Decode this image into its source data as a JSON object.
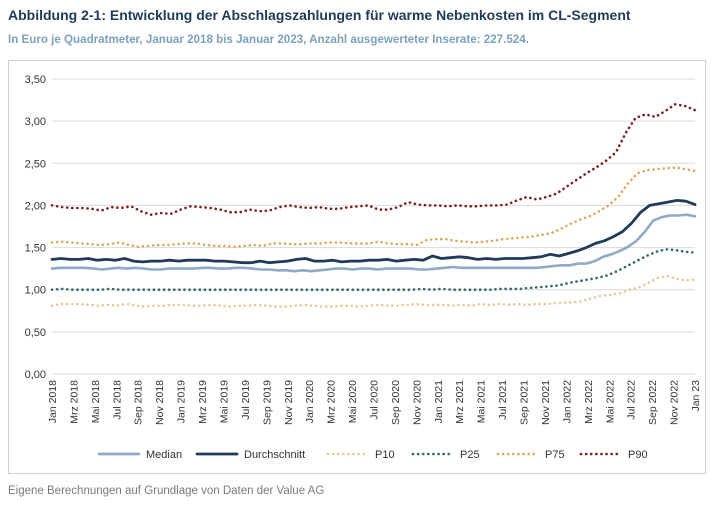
{
  "title": "Abbildung 2-1: Entwicklung der Abschlagszahlungen für warme Nebenkosten im CL-Segment",
  "subtitle": "In Euro je Quadratmeter, Januar 2018 bis Januar 2023, Anzahl ausgewerteter Inserate: 227.524.",
  "footer": "Eigene Berechnungen auf Grundlage von Daten der Value AG",
  "colors": {
    "median": "#8faac7",
    "durchschnitt": "#1f3b57",
    "p10": "#e8c99a",
    "p25": "#2e6b6b",
    "p75": "#dca95f",
    "p90": "#7b1e1e",
    "grid": "#d9d9d9"
  },
  "chart_data": {
    "type": "line",
    "ylim": [
      0,
      3.5
    ],
    "yticks": [
      "0,00",
      "0,50",
      "1,00",
      "1,50",
      "2,00",
      "2,50",
      "3,00",
      "3,50"
    ],
    "ytick_values": [
      0,
      0.5,
      1.0,
      1.5,
      2.0,
      2.5,
      3.0,
      3.5
    ],
    "grid": true,
    "legend_position": "bottom",
    "x_tick_labels": [
      "Jan 2018",
      "Mrz 2018",
      "Mai 2018",
      "Jul 2018",
      "Sep 2018",
      "Nov 2018",
      "Jan 2019",
      "Mrz 2019",
      "Mai 2019",
      "Jul 2019",
      "Sep 2019",
      "Nov 2019",
      "Jan 2020",
      "Mrz 2020",
      "Mai 2020",
      "Jul 2020",
      "Sep 2020",
      "Nov 2020",
      "Jan 2021",
      "Mrz 2021",
      "Mai 2021",
      "Jul 2021",
      "Sep 2021",
      "Nov 2021",
      "Jan 2022",
      "Mrz 2022",
      "Mai 2022",
      "Jul 2022",
      "Sep 2022",
      "Nov 2022",
      "Jan 23"
    ],
    "series": [
      {
        "name": "Median",
        "style": "solid",
        "color": "#8faac7",
        "values": [
          1.25,
          1.26,
          1.26,
          1.26,
          1.26,
          1.25,
          1.24,
          1.25,
          1.26,
          1.25,
          1.26,
          1.25,
          1.24,
          1.24,
          1.25,
          1.25,
          1.25,
          1.25,
          1.26,
          1.26,
          1.25,
          1.25,
          1.26,
          1.26,
          1.25,
          1.24,
          1.24,
          1.23,
          1.23,
          1.22,
          1.23,
          1.22,
          1.23,
          1.24,
          1.25,
          1.25,
          1.24,
          1.25,
          1.25,
          1.24,
          1.25,
          1.25,
          1.25,
          1.25,
          1.24,
          1.24,
          1.25,
          1.26,
          1.27,
          1.26,
          1.26,
          1.26,
          1.26,
          1.26,
          1.26,
          1.26,
          1.26,
          1.26,
          1.26,
          1.27,
          1.28,
          1.29,
          1.29,
          1.31,
          1.31,
          1.34,
          1.39,
          1.42,
          1.46,
          1.51,
          1.58,
          1.69,
          1.82,
          1.86,
          1.88,
          1.88,
          1.89,
          1.87
        ]
      },
      {
        "name": "Durchschnitt",
        "style": "solid",
        "color": "#1f3b57",
        "values": [
          1.36,
          1.37,
          1.36,
          1.36,
          1.37,
          1.35,
          1.36,
          1.35,
          1.37,
          1.34,
          1.33,
          1.34,
          1.34,
          1.35,
          1.34,
          1.35,
          1.35,
          1.35,
          1.34,
          1.34,
          1.33,
          1.32,
          1.32,
          1.34,
          1.32,
          1.33,
          1.34,
          1.36,
          1.37,
          1.34,
          1.34,
          1.35,
          1.33,
          1.34,
          1.34,
          1.35,
          1.35,
          1.36,
          1.34,
          1.35,
          1.36,
          1.35,
          1.4,
          1.37,
          1.38,
          1.39,
          1.38,
          1.36,
          1.37,
          1.36,
          1.37,
          1.37,
          1.37,
          1.38,
          1.39,
          1.42,
          1.4,
          1.43,
          1.46,
          1.5,
          1.55,
          1.58,
          1.63,
          1.69,
          1.79,
          1.92,
          2.0,
          2.02,
          2.04,
          2.06,
          2.05,
          2.01
        ]
      },
      {
        "name": "P10",
        "style": "dotted",
        "color": "#e8c99a",
        "values": [
          0.81,
          0.83,
          0.83,
          0.83,
          0.82,
          0.81,
          0.82,
          0.81,
          0.83,
          0.81,
          0.8,
          0.81,
          0.81,
          0.82,
          0.82,
          0.81,
          0.81,
          0.82,
          0.81,
          0.8,
          0.81,
          0.81,
          0.82,
          0.81,
          0.8,
          0.8,
          0.81,
          0.82,
          0.81,
          0.8,
          0.8,
          0.81,
          0.81,
          0.8,
          0.81,
          0.82,
          0.81,
          0.81,
          0.82,
          0.83,
          0.82,
          0.82,
          0.82,
          0.81,
          0.82,
          0.81,
          0.83,
          0.82,
          0.83,
          0.82,
          0.83,
          0.82,
          0.83,
          0.83,
          0.84,
          0.85,
          0.85,
          0.87,
          0.9,
          0.93,
          0.94,
          0.96,
          1.0,
          1.03,
          1.08,
          1.14,
          1.16,
          1.13,
          1.11,
          1.12
        ]
      },
      {
        "name": "P25",
        "style": "dotted",
        "color": "#2e6b6b",
        "values": [
          1.0,
          1.01,
          1.0,
          1.0,
          1.0,
          1.0,
          1.01,
          1.0,
          1.0,
          1.0,
          1.0,
          1.0,
          1.0,
          1.0,
          1.0,
          1.0,
          1.0,
          1.0,
          1.0,
          1.0,
          1.0,
          1.0,
          1.0,
          1.0,
          1.0,
          1.0,
          1.0,
          1.0,
          1.0,
          1.0,
          1.0,
          1.0,
          1.0,
          1.0,
          1.0,
          1.0,
          1.0,
          1.0,
          1.01,
          1.0,
          1.01,
          1.0,
          1.0,
          1.0,
          1.0,
          1.0,
          1.01,
          1.01,
          1.01,
          1.02,
          1.03,
          1.04,
          1.05,
          1.08,
          1.1,
          1.12,
          1.14,
          1.17,
          1.22,
          1.28,
          1.34,
          1.4,
          1.45,
          1.48,
          1.47,
          1.45,
          1.44
        ]
      },
      {
        "name": "P75",
        "style": "dotted",
        "color": "#dca95f",
        "values": [
          1.56,
          1.57,
          1.56,
          1.55,
          1.54,
          1.53,
          1.54,
          1.56,
          1.53,
          1.51,
          1.52,
          1.53,
          1.53,
          1.54,
          1.55,
          1.55,
          1.53,
          1.52,
          1.52,
          1.51,
          1.52,
          1.53,
          1.52,
          1.55,
          1.55,
          1.54,
          1.54,
          1.55,
          1.55,
          1.56,
          1.56,
          1.55,
          1.55,
          1.55,
          1.57,
          1.55,
          1.54,
          1.54,
          1.53,
          1.59,
          1.6,
          1.6,
          1.58,
          1.57,
          1.56,
          1.57,
          1.58,
          1.6,
          1.61,
          1.62,
          1.63,
          1.65,
          1.67,
          1.72,
          1.78,
          1.83,
          1.87,
          1.93,
          2.0,
          2.1,
          2.26,
          2.38,
          2.42,
          2.43,
          2.44,
          2.45,
          2.43,
          2.41
        ]
      },
      {
        "name": "P90",
        "style": "dotted",
        "color": "#7b1e1e",
        "values": [
          2.0,
          1.98,
          1.97,
          1.97,
          1.96,
          1.94,
          1.98,
          1.97,
          1.99,
          1.93,
          1.89,
          1.91,
          1.9,
          1.95,
          1.99,
          1.98,
          1.97,
          1.95,
          1.92,
          1.92,
          1.95,
          1.93,
          1.94,
          1.98,
          2.0,
          1.98,
          1.97,
          1.98,
          1.96,
          1.96,
          1.98,
          1.99,
          2.0,
          1.95,
          1.95,
          1.98,
          2.04,
          2.01,
          2.0,
          2.0,
          1.99,
          2.0,
          1.99,
          1.99,
          2.0,
          2.0,
          2.01,
          2.06,
          2.1,
          2.07,
          2.1,
          2.14,
          2.22,
          2.3,
          2.38,
          2.45,
          2.53,
          2.63,
          2.86,
          3.04,
          3.08,
          3.05,
          3.12,
          3.2,
          3.18,
          3.13
        ]
      }
    ]
  }
}
